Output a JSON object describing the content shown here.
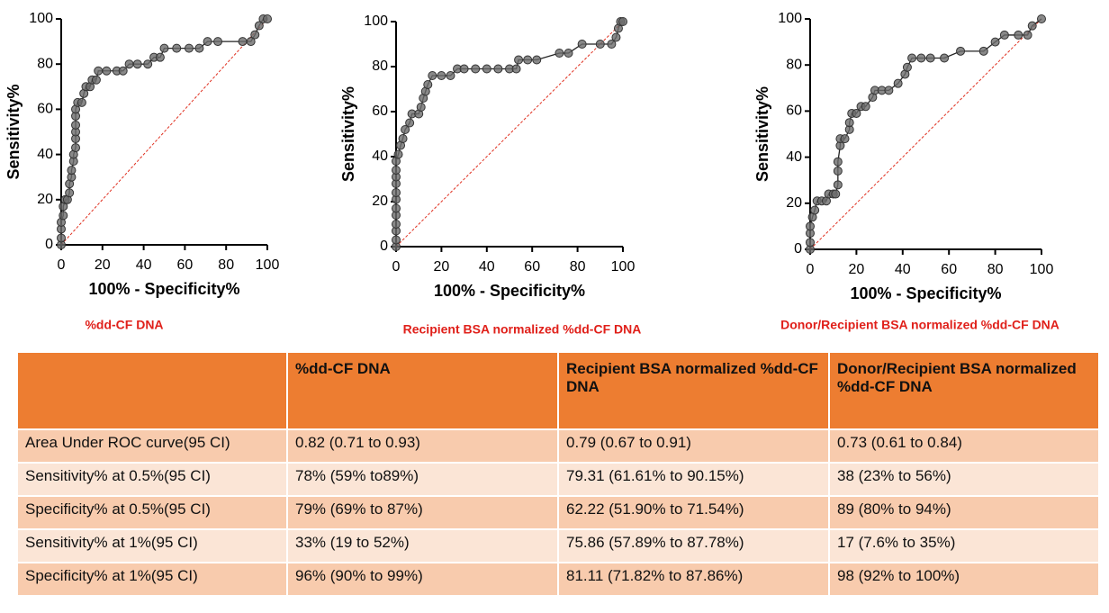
{
  "chart_data": [
    {
      "type": "line",
      "title": "%dd-CF DNA",
      "xlabel": "100% - Specificity%",
      "ylabel": "Sensitivity%",
      "xlim": [
        0,
        100
      ],
      "ylim": [
        0,
        100
      ],
      "xticks": [
        0,
        20,
        40,
        60,
        80,
        100
      ],
      "yticks": [
        0,
        20,
        40,
        60,
        80,
        100
      ],
      "x": [
        0,
        0,
        0,
        0,
        1,
        1,
        2,
        3,
        4,
        4,
        5,
        5,
        6,
        6,
        7,
        7,
        7,
        7,
        7,
        7,
        8,
        10,
        11,
        12,
        14,
        15,
        17,
        18,
        22,
        27,
        30,
        33,
        37,
        42,
        45,
        48,
        50,
        56,
        62,
        67,
        71,
        76,
        88,
        92,
        94,
        96,
        98,
        100
      ],
      "series": [
        {
          "color": "#6b6b6b",
          "values": [
            0,
            3,
            7,
            10,
            13,
            17,
            20,
            20,
            23,
            27,
            30,
            33,
            37,
            40,
            43,
            47,
            50,
            53,
            57,
            60,
            63,
            63,
            67,
            70,
            70,
            73,
            73,
            77,
            77,
            77,
            77,
            80,
            80,
            80,
            83,
            83,
            87,
            87,
            87,
            87,
            90,
            90,
            90,
            90,
            93,
            97,
            100,
            100
          ]
        }
      ]
    },
    {
      "type": "line",
      "title": "Recipient BSA normalized %dd-CF DNA",
      "xlabel": "100% - Specificity%",
      "ylabel": "Sensitivity%",
      "xlim": [
        0,
        100
      ],
      "ylim": [
        0,
        100
      ],
      "xticks": [
        0,
        20,
        40,
        60,
        80,
        100
      ],
      "yticks": [
        0,
        20,
        40,
        60,
        80,
        100
      ],
      "x": [
        0,
        0,
        0,
        0,
        0,
        0,
        0,
        0,
        0,
        0,
        0,
        0,
        1,
        2,
        3,
        4,
        6,
        7,
        10,
        11,
        12,
        13,
        14,
        16,
        20,
        24,
        27,
        30,
        35,
        40,
        45,
        50,
        53,
        54,
        58,
        62,
        72,
        76,
        82,
        90,
        95,
        97,
        98,
        99,
        100
      ],
      "series": [
        {
          "color": "#6b6b6b",
          "values": [
            0,
            3,
            7,
            10,
            14,
            17,
            21,
            24,
            28,
            31,
            34,
            38,
            41,
            45,
            48,
            52,
            55,
            59,
            59,
            62,
            66,
            69,
            72,
            76,
            76,
            76,
            79,
            79,
            79,
            79,
            79,
            79,
            79,
            83,
            83,
            83,
            86,
            86,
            90,
            90,
            90,
            93,
            97,
            100,
            100
          ]
        }
      ]
    },
    {
      "type": "line",
      "title": "Donor/Recipient BSA normalized %dd-CF DNA",
      "xlabel": "100% - Specificity%",
      "ylabel": "Sensitivity%",
      "xlim": [
        0,
        100
      ],
      "ylim": [
        0,
        100
      ],
      "xticks": [
        0,
        20,
        40,
        60,
        80,
        100
      ],
      "yticks": [
        0,
        20,
        40,
        60,
        80,
        100
      ],
      "x": [
        0,
        0,
        0,
        0,
        1,
        2,
        3,
        5,
        7,
        8,
        10,
        11,
        12,
        12,
        12,
        13,
        13,
        15,
        17,
        17,
        18,
        20,
        22,
        24,
        27,
        28,
        31,
        34,
        38,
        41,
        42,
        44,
        48,
        52,
        58,
        65,
        75,
        80,
        84,
        90,
        94,
        96,
        100
      ],
      "series": [
        {
          "color": "#6b6b6b",
          "values": [
            0,
            3,
            7,
            10,
            14,
            17,
            21,
            21,
            21,
            24,
            24,
            24,
            28,
            34,
            38,
            45,
            48,
            48,
            52,
            55,
            59,
            59,
            62,
            62,
            66,
            69,
            69,
            69,
            72,
            76,
            79,
            83,
            83,
            83,
            83,
            86,
            86,
            90,
            93,
            93,
            93,
            97,
            100
          ]
        }
      ]
    }
  ],
  "table": {
    "header": [
      "",
      "%dd-CF DNA",
      "Recipient BSA normalized %dd-CF DNA",
      "Donor/Recipient BSA normalized %dd-CF DNA"
    ],
    "rows": [
      [
        "Area Under ROC curve(95 CI)",
        "0.82 (0.71 to 0.93)",
        "0.79 (0.67 to 0.91)",
        "0.73 (0.61 to 0.84)"
      ],
      [
        "Sensitivity% at 0.5%(95 CI)",
        "78% (59% to89%)",
        "79.31 (61.61% to 90.15%)",
        "38 (23% to 56%)"
      ],
      [
        "Specificity% at 0.5%(95 CI)",
        "79% (69% to 87%)",
        "62.22 (51.90% to 71.54%)",
        "89 (80% to 94%)"
      ],
      [
        "Sensitivity% at 1%(95 CI)",
        "33% (19 to 52%)",
        "75.86 (57.89% to 87.78%)",
        "17 (7.6% to 35%)"
      ],
      [
        "Specificity% at 1%(95 CI)",
        "96% (90% to 99%)",
        "81.11 (71.82% to 87.86%)",
        "98 (92% to 100%)"
      ]
    ]
  }
}
